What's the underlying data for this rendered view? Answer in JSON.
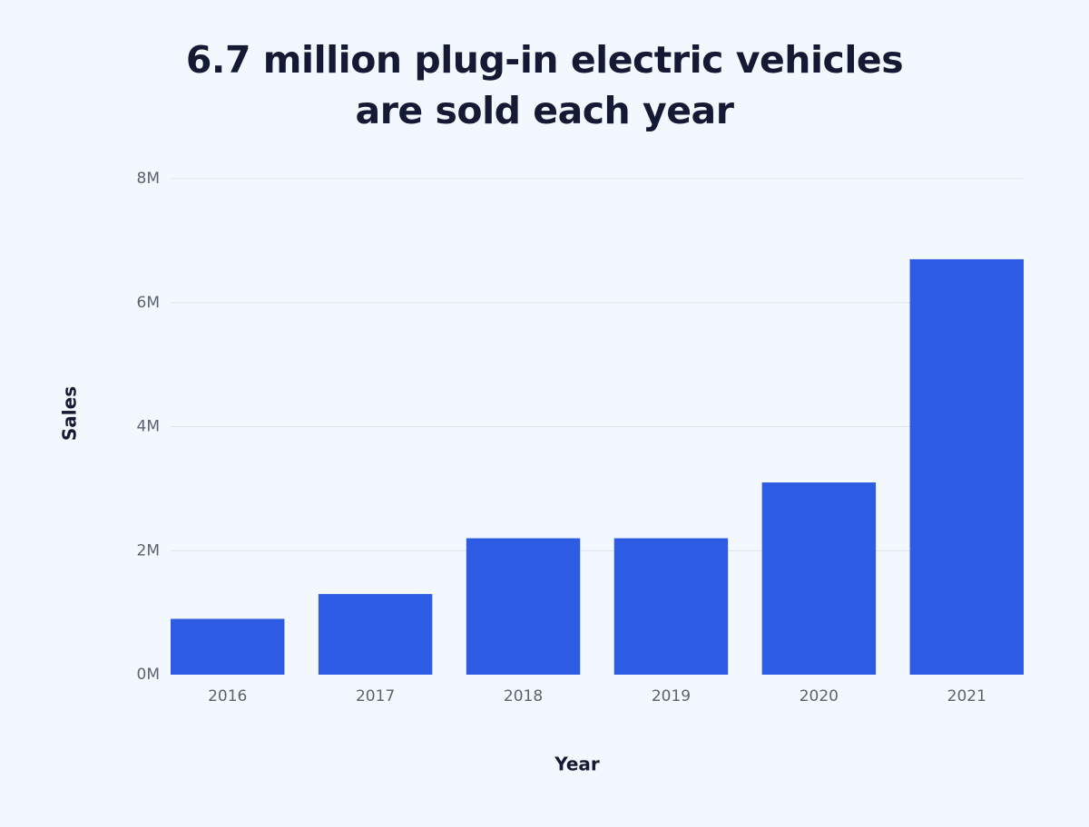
{
  "title": {
    "line1": "6.7 million plug-in electric vehicles",
    "line2": "are sold each year"
  },
  "colors": {
    "background": "#f3f8fe",
    "bar": "#2d5be3",
    "grid": "#dde3ec",
    "text": "#141a33",
    "tick_text": "#5b6270"
  },
  "chart_data": {
    "type": "bar",
    "title": "6.7 million plug-in electric vehicles are sold each year",
    "xlabel": "Year",
    "ylabel": "Sales",
    "categories": [
      "2016",
      "2017",
      "2018",
      "2019",
      "2020",
      "2021"
    ],
    "values": [
      900000,
      1300000,
      2200000,
      2200000,
      3100000,
      6700000
    ],
    "ylim": [
      0,
      8000000
    ],
    "yticks": [
      0,
      2000000,
      4000000,
      6000000,
      8000000
    ],
    "ytick_labels": [
      "0M",
      "2M",
      "4M",
      "6M",
      "8M"
    ],
    "grid": true,
    "legend": "none"
  }
}
